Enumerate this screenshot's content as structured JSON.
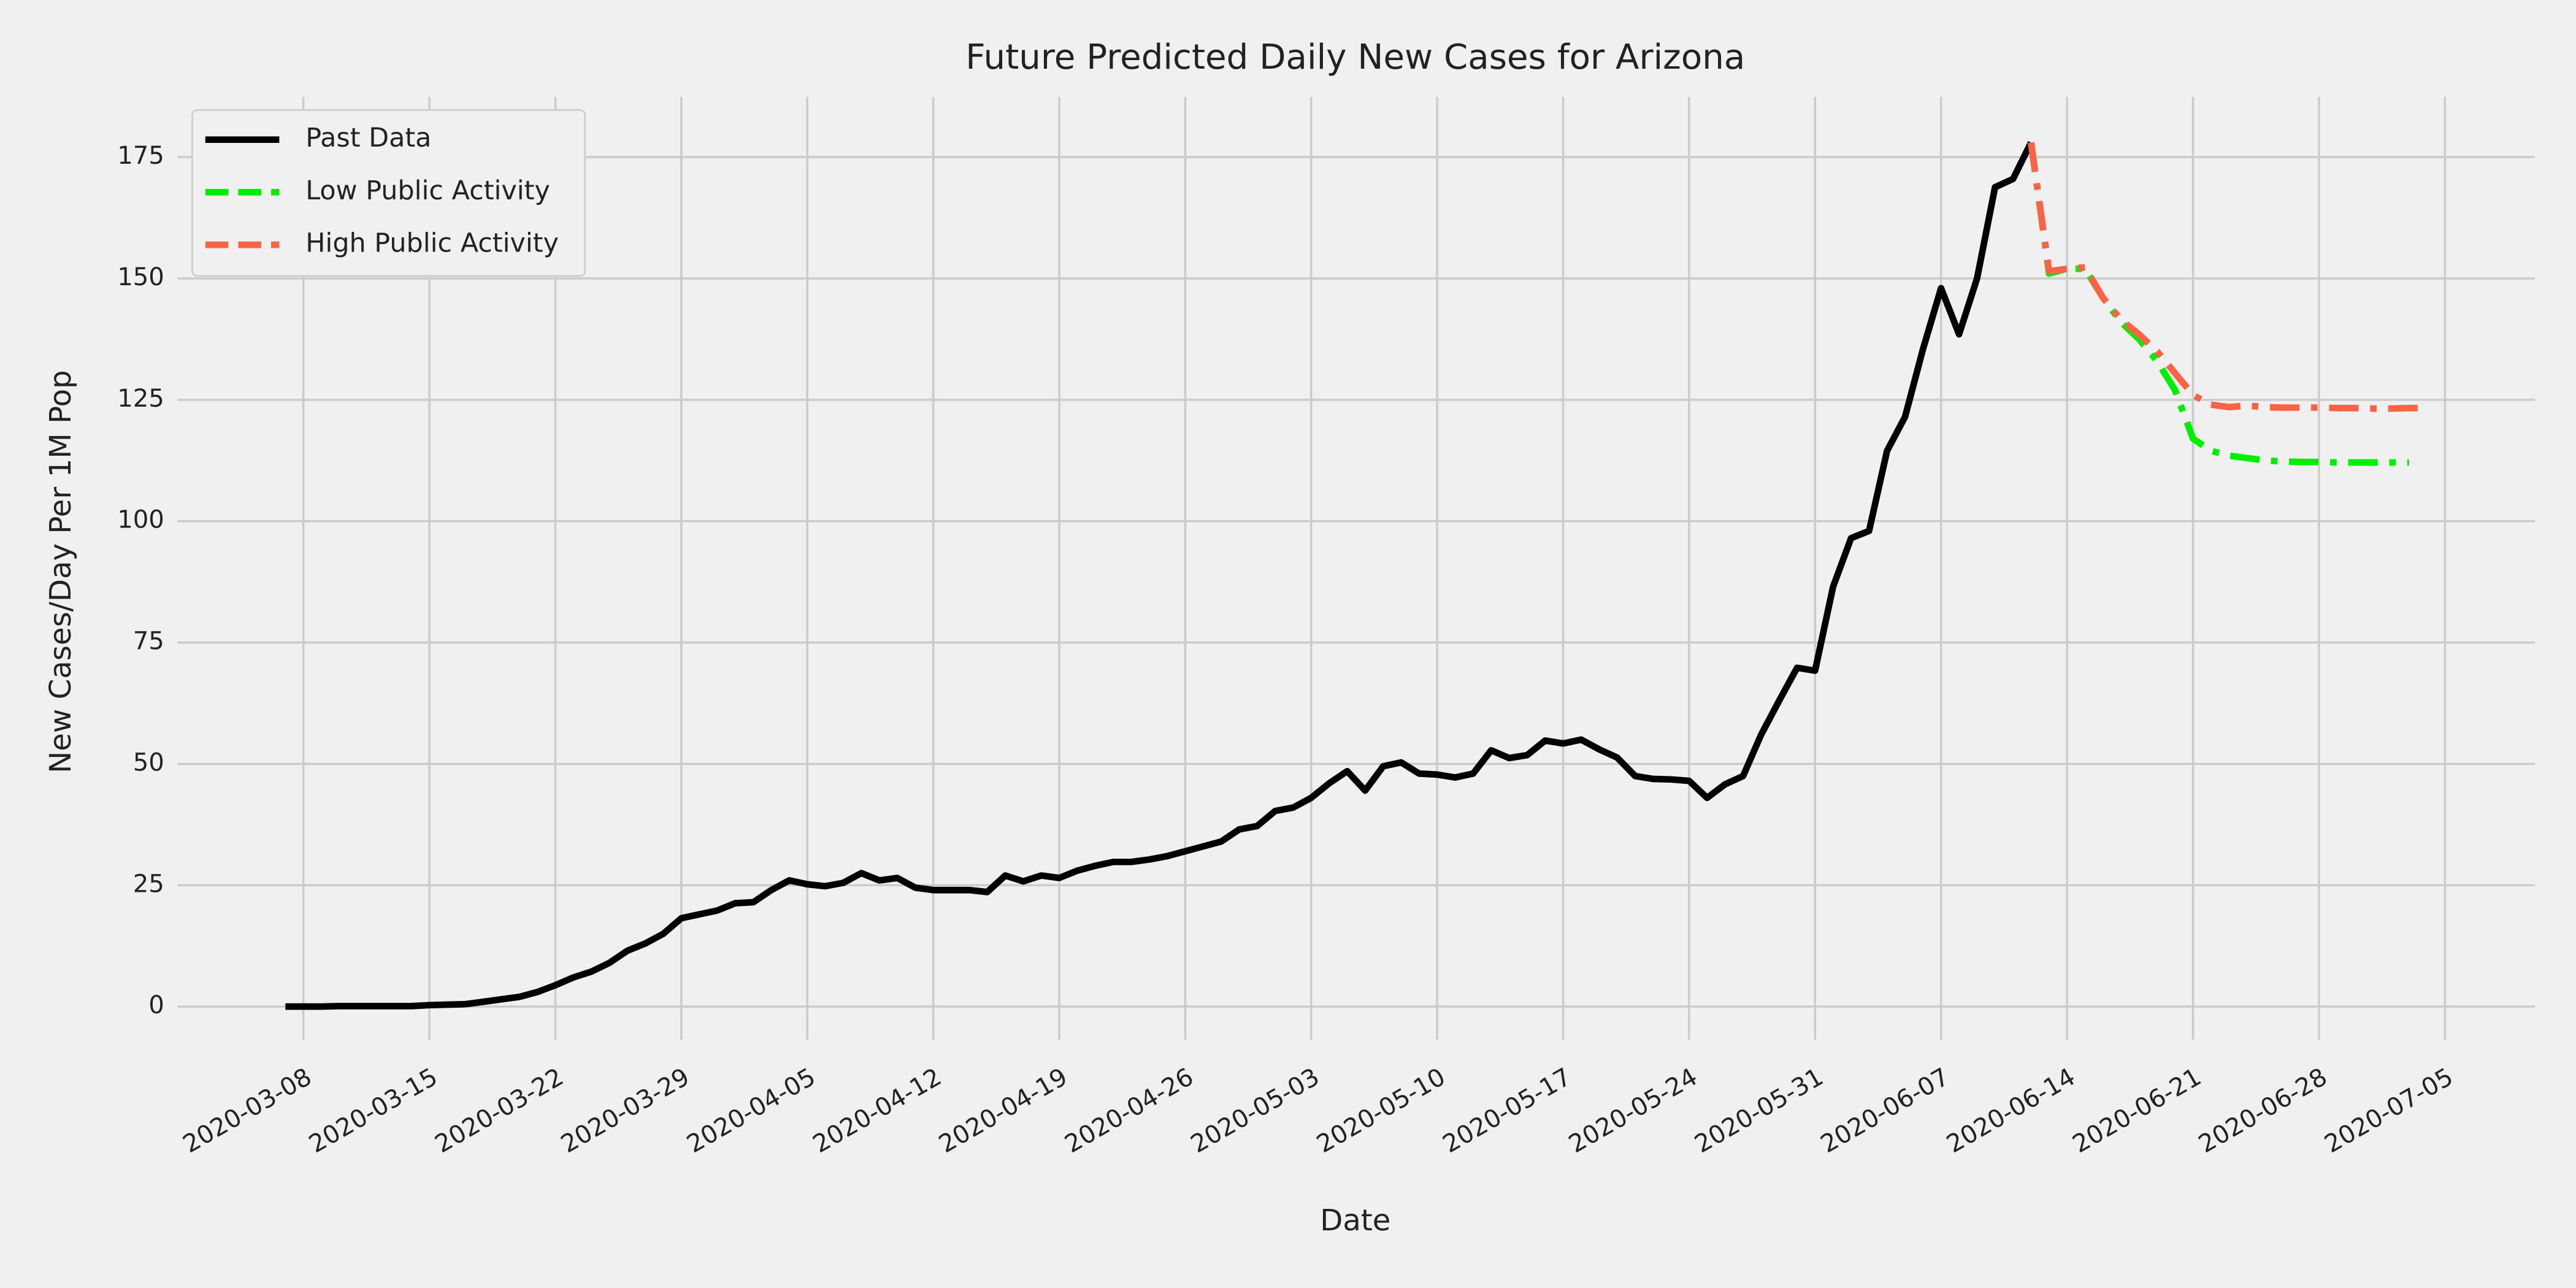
{
  "chart_data": {
    "type": "line",
    "title": "Future Predicted Daily New Cases for Arizona",
    "xlabel": "Date",
    "ylabel": "New Cases/Day Per 1M Pop",
    "xlim": [
      "2020-03-01",
      "2020-07-10"
    ],
    "ylim": [
      -8.9,
      187.4
    ],
    "xticks": [
      "2020-03-08",
      "2020-03-15",
      "2020-03-22",
      "2020-03-29",
      "2020-04-05",
      "2020-04-12",
      "2020-04-19",
      "2020-04-26",
      "2020-05-03",
      "2020-05-10",
      "2020-05-17",
      "2020-05-24",
      "2020-05-31",
      "2020-06-07",
      "2020-06-14",
      "2020-06-21",
      "2020-06-28",
      "2020-07-05"
    ],
    "yticks": [
      0,
      25,
      50,
      75,
      100,
      125,
      150,
      175
    ],
    "grid": true,
    "legend": "upper left",
    "series": [
      {
        "name": "Past Data",
        "color": "#000000",
        "linestyle": "solid",
        "x": [
          "2020-03-07",
          "2020-03-08",
          "2020-03-09",
          "2020-03-10",
          "2020-03-11",
          "2020-03-12",
          "2020-03-13",
          "2020-03-14",
          "2020-03-15",
          "2020-03-16",
          "2020-03-17",
          "2020-03-18",
          "2020-03-19",
          "2020-03-20",
          "2020-03-21",
          "2020-03-22",
          "2020-03-23",
          "2020-03-24",
          "2020-03-25",
          "2020-03-26",
          "2020-03-27",
          "2020-03-28",
          "2020-03-29",
          "2020-03-30",
          "2020-03-31",
          "2020-04-01",
          "2020-04-02",
          "2020-04-03",
          "2020-04-04",
          "2020-04-05",
          "2020-04-06",
          "2020-04-07",
          "2020-04-08",
          "2020-04-09",
          "2020-04-10",
          "2020-04-11",
          "2020-04-12",
          "2020-04-13",
          "2020-04-14",
          "2020-04-15",
          "2020-04-16",
          "2020-04-17",
          "2020-04-18",
          "2020-04-19",
          "2020-04-20",
          "2020-04-21",
          "2020-04-22",
          "2020-04-23",
          "2020-04-24",
          "2020-04-25",
          "2020-04-26",
          "2020-04-27",
          "2020-04-28",
          "2020-04-29",
          "2020-04-30",
          "2020-05-01",
          "2020-05-02",
          "2020-05-03",
          "2020-05-04",
          "2020-05-05",
          "2020-05-06",
          "2020-05-07",
          "2020-05-08",
          "2020-05-09",
          "2020-05-10",
          "2020-05-11",
          "2020-05-12",
          "2020-05-13",
          "2020-05-14",
          "2020-05-15",
          "2020-05-16",
          "2020-05-17",
          "2020-05-18",
          "2020-05-19",
          "2020-05-20",
          "2020-05-21",
          "2020-05-22",
          "2020-05-23",
          "2020-05-24",
          "2020-05-25",
          "2020-05-26",
          "2020-05-27",
          "2020-05-28",
          "2020-05-29",
          "2020-05-30",
          "2020-05-31",
          "2020-06-01",
          "2020-06-02",
          "2020-06-03",
          "2020-06-04",
          "2020-06-05",
          "2020-06-06",
          "2020-06-07",
          "2020-06-08",
          "2020-06-09",
          "2020-06-10",
          "2020-06-11",
          "2020-06-12"
        ],
        "values": [
          0,
          0,
          0,
          0.1,
          0.1,
          0.1,
          0.1,
          0.1,
          0.3,
          0.4,
          0.5,
          1,
          1.5,
          2,
          3,
          4.4,
          6,
          7.2,
          9,
          11.5,
          13,
          15,
          18.2,
          19,
          19.8,
          21.3,
          21.5,
          24,
          26,
          25.2,
          24.8,
          25.5,
          27.5,
          26,
          26.5,
          24.5,
          24,
          24,
          24,
          23.6,
          27,
          25.8,
          27,
          26.5,
          28,
          29,
          29.8,
          29.8,
          30.3,
          31,
          32,
          33,
          34,
          36.5,
          37.2,
          40.3,
          41,
          43,
          46,
          48.5,
          44.5,
          49.5,
          50.3,
          48,
          47.8,
          47.2,
          48,
          52.8,
          51.2,
          51.8,
          54.8,
          54.2,
          55,
          53,
          51.3,
          47.5,
          46.9,
          46.8,
          46.5,
          43,
          45.8,
          47.5,
          56,
          63,
          69.8,
          69.2,
          86.5,
          96.5,
          98,
          114.5,
          121.5,
          135.5,
          148,
          138.5,
          150,
          168.8,
          170.5,
          178
        ]
      },
      {
        "name": "Low Public Activity",
        "color": "#00ee00",
        "linestyle": "dashdot",
        "x": [
          "2020-06-12",
          "2020-06-13",
          "2020-06-14",
          "2020-06-15",
          "2020-06-16",
          "2020-06-17",
          "2020-06-18",
          "2020-06-19",
          "2020-06-20",
          "2020-06-21",
          "2020-06-22",
          "2020-06-23",
          "2020-06-24",
          "2020-06-25",
          "2020-06-26",
          "2020-06-27",
          "2020-06-28",
          "2020-06-29",
          "2020-06-30",
          "2020-07-01",
          "2020-07-02",
          "2020-07-03"
        ],
        "values": [
          178,
          151,
          152,
          152,
          146,
          141,
          137.5,
          133,
          127,
          117,
          114.5,
          113.5,
          113,
          112.5,
          112.3,
          112.2,
          112.2,
          112.1,
          112.1,
          112.1,
          112.1,
          112.1
        ]
      },
      {
        "name": "High Public Activity",
        "color": "#fc6346",
        "linestyle": "dashdot",
        "x": [
          "2020-06-12",
          "2020-06-13",
          "2020-06-14",
          "2020-06-15",
          "2020-06-16",
          "2020-06-17",
          "2020-06-18",
          "2020-06-19",
          "2020-06-20",
          "2020-06-21",
          "2020-06-22",
          "2020-06-23",
          "2020-06-24",
          "2020-06-25",
          "2020-06-26",
          "2020-06-27",
          "2020-06-28",
          "2020-06-29",
          "2020-06-30",
          "2020-07-01",
          "2020-07-02",
          "2020-07-03",
          "2020-07-04"
        ],
        "values": [
          178,
          151.5,
          152,
          152.3,
          146,
          141.5,
          138.5,
          135,
          130.5,
          126,
          124,
          123.5,
          123.8,
          123.5,
          123.4,
          123.4,
          123.4,
          123.3,
          123.3,
          123.2,
          123.2,
          123.3,
          123.3
        ]
      }
    ]
  }
}
